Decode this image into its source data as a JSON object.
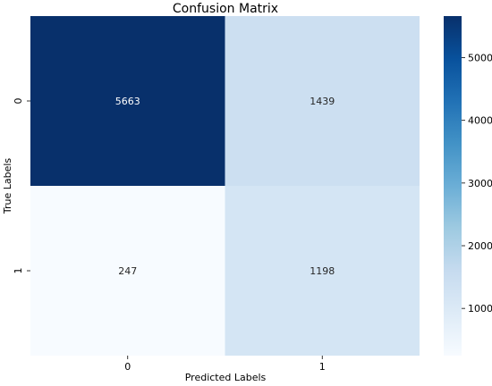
{
  "chart_data": {
    "type": "heatmap",
    "title": "Confusion Matrix",
    "xlabel": "Predicted Labels",
    "ylabel": "True Labels",
    "x_categories": [
      "0",
      "1"
    ],
    "y_categories": [
      "0",
      "1"
    ],
    "values": [
      [
        5663,
        1439
      ],
      [
        247,
        1198
      ]
    ],
    "colormap": "Blues",
    "colorbar": {
      "min": 247,
      "max": 5663,
      "ticks": [
        1000,
        2000,
        3000,
        4000,
        5000
      ],
      "tick_labels": [
        "1000",
        "2000",
        "3000",
        "4000",
        "5000"
      ]
    },
    "colors": {
      "low": "#f7fbff",
      "high": "#08306b"
    }
  }
}
